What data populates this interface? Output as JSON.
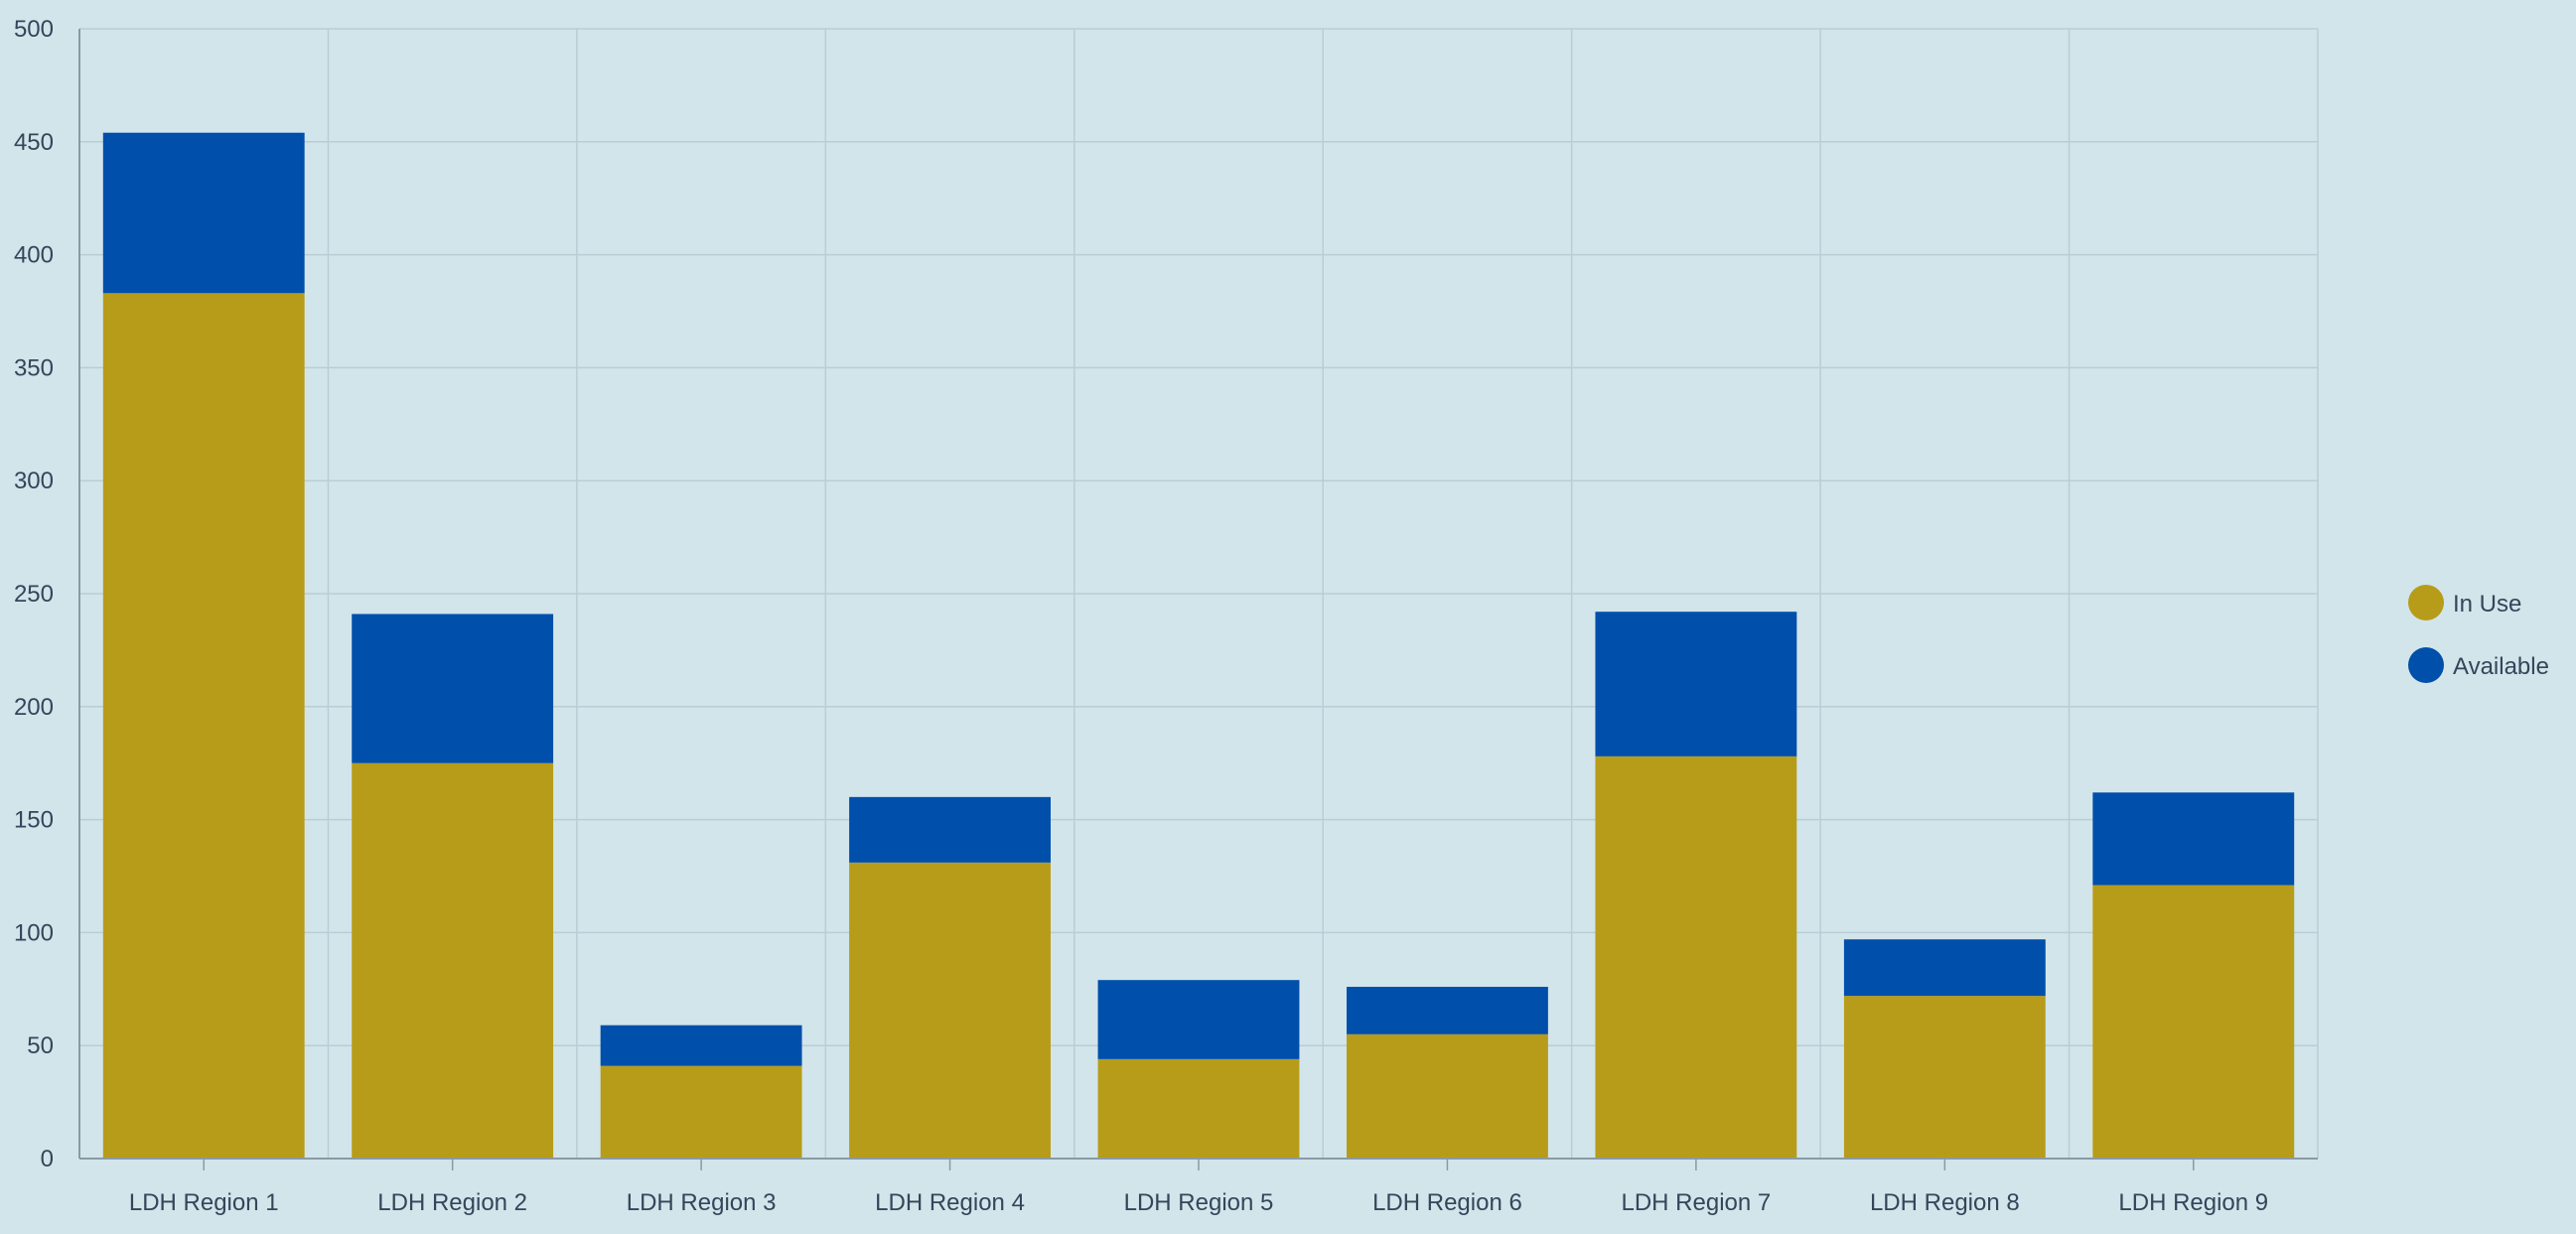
{
  "chart_data": {
    "type": "bar",
    "stacked": true,
    "categories": [
      "LDH Region 1",
      "LDH Region 2",
      "LDH Region 3",
      "LDH Region 4",
      "LDH Region 5",
      "LDH Region 6",
      "LDH Region 7",
      "LDH Region 8",
      "LDH Region 9"
    ],
    "series": [
      {
        "name": "In Use",
        "color": "#b79c1a",
        "values": [
          383,
          175,
          41,
          131,
          44,
          55,
          178,
          72,
          121
        ]
      },
      {
        "name": "Available",
        "color": "#004fab",
        "values": [
          71,
          66,
          18,
          29,
          35,
          21,
          64,
          25,
          41
        ]
      }
    ],
    "title": "",
    "xlabel": "",
    "ylabel": "",
    "ylim": [
      0,
      500
    ],
    "yticks": [
      0,
      50,
      100,
      150,
      200,
      250,
      300,
      350,
      400,
      450,
      500
    ],
    "grid": true,
    "legend_position": "right"
  },
  "colors": {
    "background": "#d2e5eb",
    "grid": "#b9cdd6",
    "axis": "#8a9aa5",
    "text": "#34465a"
  }
}
